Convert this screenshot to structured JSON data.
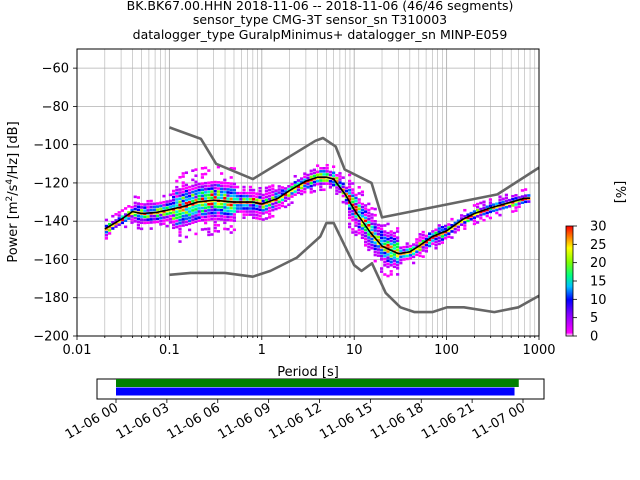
{
  "title_lines": [
    "BK.BK67.00.HHN   2018-11-06 -- 2018-11-06  (46/46 segments)",
    "sensor_type CMG-3T sensor_sn T310003",
    "datalogger_type GuralpMinimus+ datalogger_sn MINP-E059"
  ],
  "chart_data": {
    "type": "heatmap",
    "title": "BK.BK67.00.HHN   2018-11-06 -- 2018-11-06  (46/46 segments)",
    "xlabel": "Period [s]",
    "ylabel": "Power [m²/s⁴/Hz] [dB]",
    "xscale": "log",
    "xlim": [
      0.01,
      1000
    ],
    "ylim": [
      -200,
      -50
    ],
    "grid": true,
    "x_tick_labels": [
      "0.01",
      "0.1",
      "1",
      "10",
      "100",
      "1000"
    ],
    "y_tick_labels": [
      "−200",
      "−180",
      "−160",
      "−140",
      "−120",
      "−100",
      "−80",
      "−60"
    ],
    "y_ticks": [
      -200,
      -180,
      -160,
      -140,
      -120,
      -100,
      -80,
      -60
    ],
    "colorbar": {
      "label": "[%]",
      "range": [
        0,
        30
      ],
      "ticks": [
        0,
        5,
        10,
        15,
        20,
        25,
        30
      ],
      "tick_labels": [
        "0",
        "5",
        "10",
        "15",
        "20",
        "25",
        "30"
      ]
    },
    "series": [
      {
        "name": "",
        "role": "high-noise-model",
        "color": "#666666",
        "points": [
          [
            0.1,
            -91
          ],
          [
            0.22,
            -97
          ],
          [
            0.32,
            -110
          ],
          [
            0.8,
            -118
          ],
          [
            3.8,
            -98
          ],
          [
            4.6,
            -96.5
          ],
          [
            6.3,
            -101
          ],
          [
            7.9,
            -113
          ],
          [
            15.4,
            -120
          ],
          [
            20,
            -138
          ],
          [
            354.8,
            -126
          ],
          [
            1000,
            -112
          ]
        ]
      },
      {
        "name": "",
        "role": "low-noise-model",
        "color": "#666666",
        "points": [
          [
            0.1,
            -168
          ],
          [
            0.17,
            -167
          ],
          [
            0.4,
            -167
          ],
          [
            0.8,
            -169
          ],
          [
            1.24,
            -166
          ],
          [
            2.4,
            -159
          ],
          [
            4.3,
            -148
          ],
          [
            5,
            -141
          ],
          [
            6,
            -141
          ],
          [
            10,
            -163
          ],
          [
            12,
            -166
          ],
          [
            15.6,
            -162
          ],
          [
            21.9,
            -177.5
          ],
          [
            31.6,
            -185
          ],
          [
            45,
            -187.5
          ],
          [
            70,
            -187.5
          ],
          [
            101,
            -185
          ],
          [
            154,
            -185
          ],
          [
            328,
            -187.5
          ],
          [
            600,
            -185
          ],
          [
            1000,
            -179
          ]
        ]
      },
      {
        "name": "",
        "role": "mean",
        "color": "#000000",
        "points": [
          [
            0.02,
            -144
          ],
          [
            0.03,
            -139
          ],
          [
            0.04,
            -135
          ],
          [
            0.05,
            -136
          ],
          [
            0.07,
            -135.5
          ],
          [
            0.1,
            -134
          ],
          [
            0.15,
            -132
          ],
          [
            0.2,
            -130
          ],
          [
            0.3,
            -129
          ],
          [
            0.5,
            -130
          ],
          [
            0.8,
            -130
          ],
          [
            1,
            -131
          ],
          [
            1.5,
            -128
          ],
          [
            2,
            -124
          ],
          [
            3,
            -119
          ],
          [
            4,
            -117
          ],
          [
            5,
            -117
          ],
          [
            6,
            -118
          ],
          [
            8,
            -126
          ],
          [
            10,
            -134
          ],
          [
            15,
            -146
          ],
          [
            20,
            -153
          ],
          [
            30,
            -157
          ],
          [
            40,
            -156
          ],
          [
            50,
            -153
          ],
          [
            70,
            -148
          ],
          [
            100,
            -145
          ],
          [
            150,
            -139
          ],
          [
            200,
            -136
          ],
          [
            300,
            -133
          ],
          [
            500,
            -130
          ],
          [
            700,
            -128
          ],
          [
            800,
            -128
          ]
        ]
      }
    ],
    "time_axis": {
      "tick_labels": [
        "11-06 00",
        "11-06 03",
        "11-06 06",
        "11-06 09",
        "11-06 12",
        "11-06 15",
        "11-06 18",
        "11-06 21",
        "11-07 00"
      ],
      "start": "11-06 00",
      "end": "11-07 00",
      "bars": [
        {
          "name": "",
          "role": "data-availability",
          "color": "#008000",
          "from": "11-06 00:00",
          "to": "11-06 23:45"
        },
        {
          "name": "",
          "role": "used-segments",
          "color": "#0000ff",
          "from": "11-06 00:00",
          "to": "11-06 23:30"
        }
      ]
    }
  }
}
